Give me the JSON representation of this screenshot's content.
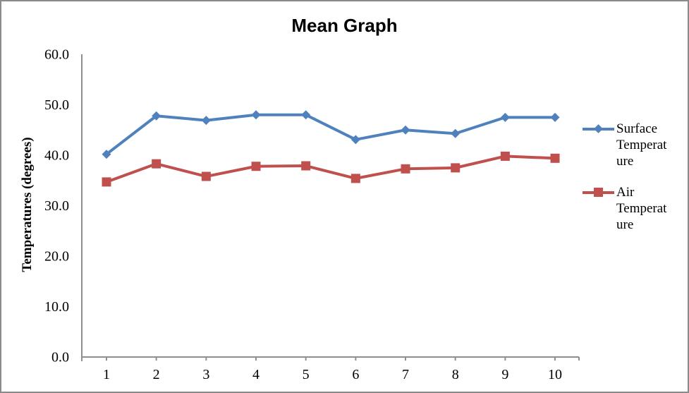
{
  "chart_data": {
    "type": "line",
    "title": "Mean Graph",
    "xlabel": "",
    "ylabel": "Temperatures (degrees)",
    "ylim": [
      0,
      60
    ],
    "ytick_labels": [
      "0.0",
      "10.0",
      "20.0",
      "30.0",
      "40.0",
      "50.0",
      "60.0"
    ],
    "categories": [
      "1",
      "2",
      "3",
      "4",
      "5",
      "6",
      "7",
      "8",
      "9",
      "10"
    ],
    "grid": false,
    "legend_position": "right",
    "axis_color": "#8f8f8f",
    "border_color": "#8a8a8a",
    "series": [
      {
        "name": "Surface Temperature",
        "legend_lines": [
          "Surface",
          "Temperat",
          "ure"
        ],
        "color": "#4F81BD",
        "marker": "diamond",
        "values": [
          40.2,
          47.8,
          46.9,
          48.0,
          48.0,
          43.1,
          45.0,
          44.3,
          47.5,
          47.5
        ]
      },
      {
        "name": "Air Temperature",
        "legend_lines": [
          "Air",
          "Temperat",
          "ure"
        ],
        "color": "#C0504D",
        "marker": "square",
        "values": [
          34.7,
          38.3,
          35.8,
          37.8,
          37.9,
          35.4,
          37.3,
          37.5,
          39.8,
          39.4
        ]
      }
    ]
  }
}
